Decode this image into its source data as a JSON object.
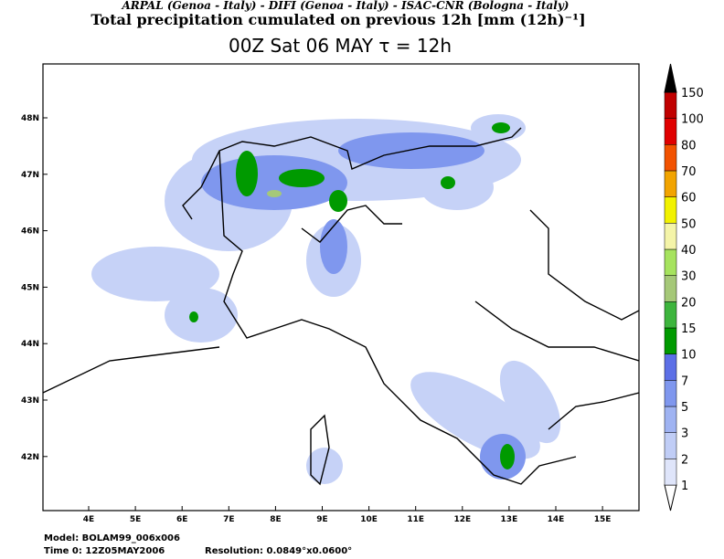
{
  "header": {
    "credits": "ARPAL (Genoa - Italy)  -  DIFI (Genoa - Italy)  -  ISAC-CNR (Bologna - Italy)",
    "title": "Total precipitation cumulated on previous 12h [mm (12h)⁻¹]",
    "subtitle": "00Z Sat 06 MAY  τ = 12h"
  },
  "map": {
    "xticks": [
      {
        "value": 4,
        "label": "4E"
      },
      {
        "value": 5,
        "label": "5E"
      },
      {
        "value": 6,
        "label": "6E"
      },
      {
        "value": 7,
        "label": "7E"
      },
      {
        "value": 8,
        "label": "8E"
      },
      {
        "value": 9,
        "label": "9E"
      },
      {
        "value": 10,
        "label": "10E"
      },
      {
        "value": 11,
        "label": "11E"
      },
      {
        "value": 12,
        "label": "12E"
      },
      {
        "value": 13,
        "label": "13E"
      },
      {
        "value": 14,
        "label": "14E"
      },
      {
        "value": 15,
        "label": "15E"
      }
    ],
    "yticks": [
      {
        "value": 48,
        "label": "48N"
      },
      {
        "value": 47,
        "label": "47N"
      },
      {
        "value": 46,
        "label": "46N"
      },
      {
        "value": 45,
        "label": "45N"
      },
      {
        "value": 44,
        "label": "44N"
      },
      {
        "value": 43,
        "label": "43N"
      },
      {
        "value": 42,
        "label": "42N"
      }
    ]
  },
  "colorbar": {
    "levels": [
      1,
      2,
      3,
      5,
      7,
      10,
      15,
      20,
      30,
      40,
      50,
      60,
      70,
      80,
      100,
      150
    ],
    "colors": [
      "#ffffff",
      "#dfe5fa",
      "#c0cdf6",
      "#9fb3f2",
      "#7f97ee",
      "#5c6fe6",
      "#009a00",
      "#3db53d",
      "#a5c878",
      "#a6e35e",
      "#f4f4a8",
      "#f2f200",
      "#f2a400",
      "#f25200",
      "#e00000",
      "#c00000",
      "#000000"
    ]
  },
  "footer": {
    "model": "Model: BOLAM99_006x006",
    "time": "Time 0: 12Z05MAY2006",
    "resolution": "Resolution: 0.0849°x0.0600°"
  }
}
